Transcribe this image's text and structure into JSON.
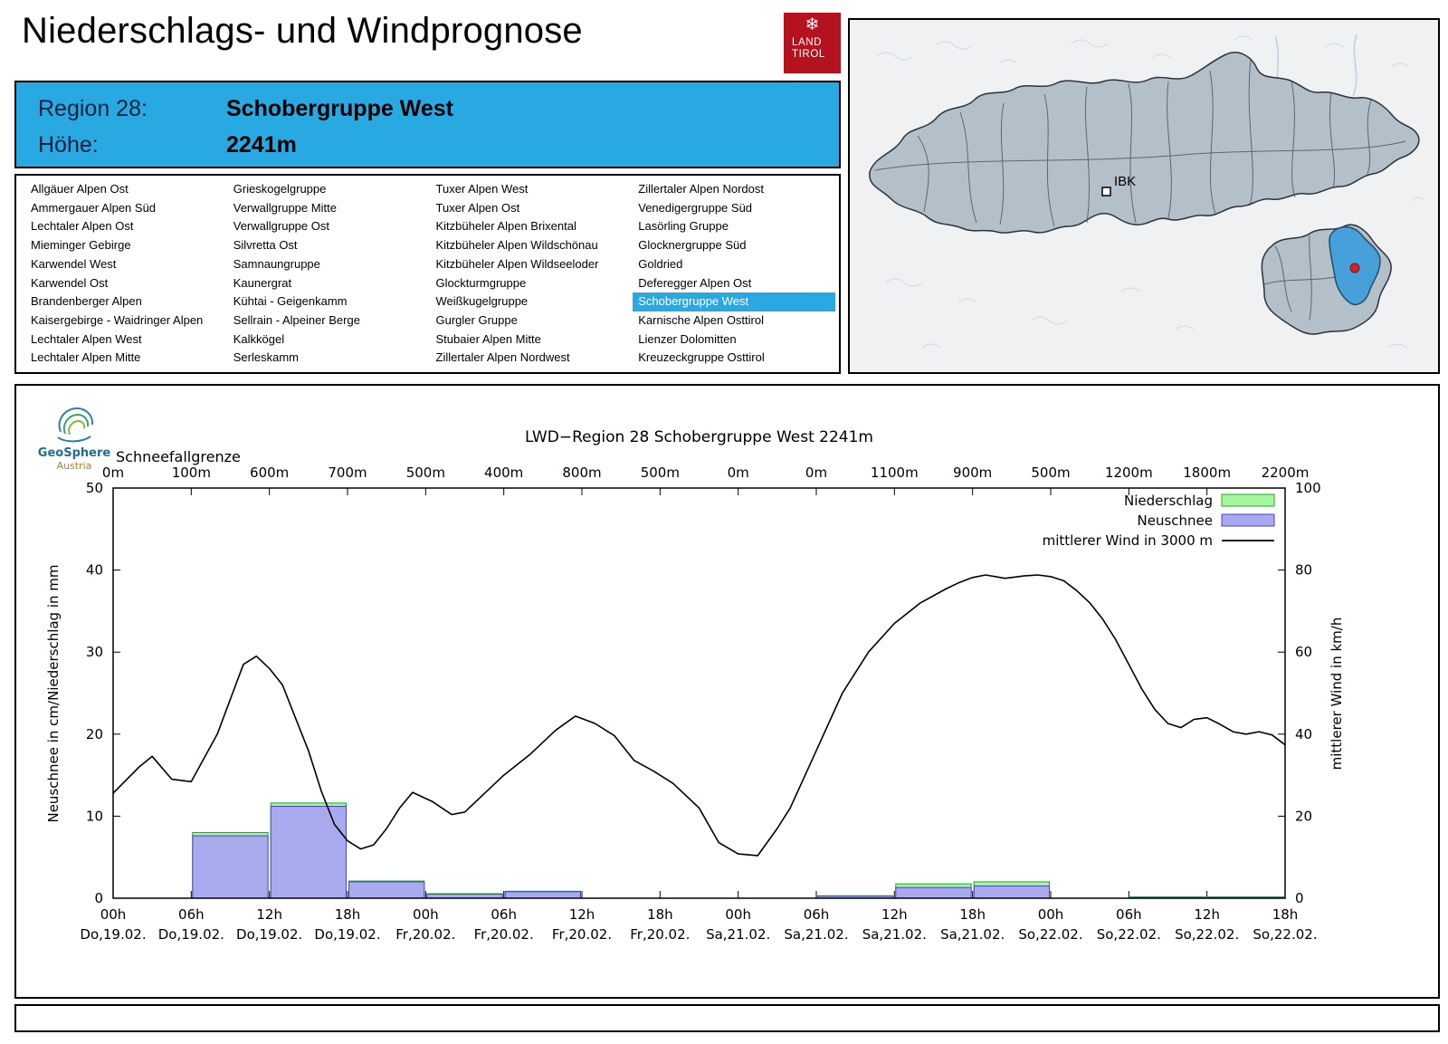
{
  "theme": {
    "accent": "#29a9e1",
    "logo_red": "#b5121f"
  },
  "header": {
    "title": "Niederschlags- und Windprognose"
  },
  "logo": {
    "snowflake": "❄",
    "line1": "LAND",
    "line2": "TIROL"
  },
  "region_info": {
    "region_label": "Region 28:",
    "region_value": "Schobergruppe West",
    "altitude_label": "Höhe:",
    "altitude_value": "2241m"
  },
  "map": {
    "city_label": "IBK"
  },
  "region_list": {
    "selected": "Schobergruppe West",
    "columns": [
      [
        "Allgäuer Alpen Ost",
        "Ammergauer Alpen Süd",
        "Lechtaler Alpen Ost",
        "Mieminger Gebirge",
        "Karwendel West",
        "Karwendel Ost",
        "Brandenberger Alpen",
        "Kaisergebirge - Waidringer Alpen",
        "Lechtaler Alpen West",
        "Lechtaler Alpen Mitte"
      ],
      [
        "Grieskogelgruppe",
        "Verwallgruppe Mitte",
        "Verwallgruppe Ost",
        "Silvretta Ost",
        "Samnaungruppe",
        "Kaunergrat",
        "Kühtai - Geigenkamm",
        "Sellrain - Alpeiner Berge",
        "Kalkkögel",
        "Serleskamm"
      ],
      [
        "Tuxer Alpen West",
        "Tuxer Alpen Ost",
        "Kitzbüheler Alpen Brixental",
        "Kitzbüheler Alpen Wildschönau",
        "Kitzbüheler Alpen Wildseeloder",
        "Glockturmgruppe",
        "Weißkugelgruppe",
        "Gurgler Gruppe",
        "Stubaier Alpen Mitte",
        "Zillertaler Alpen Nordwest"
      ],
      [
        "Zillertaler Alpen Nordost",
        "Venedigergruppe Süd",
        "Lasörling Gruppe",
        "Glocknergruppe Süd",
        "Goldried",
        "Deferegger Alpen Ost",
        "Schobergruppe West",
        "Karnische Alpen Osttirol",
        "Lienzer Dolomitten",
        "Kreuzeckgruppe Osttirol"
      ]
    ]
  },
  "chart_data": {
    "type": "bar+line",
    "title": "LWD−Region 28 Schobergruppe West 2241m",
    "watermark": {
      "line1": "GeoSphere",
      "line2": "Austria"
    },
    "snowline_label": "Schneefallgrenze",
    "snowline_values": [
      "0m",
      "100m",
      "600m",
      "700m",
      "500m",
      "400m",
      "800m",
      "500m",
      "0m",
      "0m",
      "1100m",
      "900m",
      "500m",
      "1200m",
      "1800m",
      "2200m"
    ],
    "ylabel_left": "Neuschnee in cm/Niederschlag in mm",
    "ylabel_right": "mittlerer Wind in km/h",
    "ylim_left": [
      0,
      50
    ],
    "ylim_right": [
      0,
      100
    ],
    "yticks_left": [
      0,
      10,
      20,
      30,
      40,
      50
    ],
    "yticks_right": [
      0,
      20,
      40,
      60,
      80,
      100
    ],
    "x_hours_span": 90,
    "x_ticks": [
      {
        "hour": "00h",
        "day": "Do,19.02."
      },
      {
        "hour": "06h",
        "day": "Do,19.02."
      },
      {
        "hour": "12h",
        "day": "Do,19.02."
      },
      {
        "hour": "18h",
        "day": "Do,19.02."
      },
      {
        "hour": "00h",
        "day": "Fr,20.02."
      },
      {
        "hour": "06h",
        "day": "Fr,20.02."
      },
      {
        "hour": "12h",
        "day": "Fr,20.02."
      },
      {
        "hour": "18h",
        "day": "Fr,20.02."
      },
      {
        "hour": "00h",
        "day": "Sa,21.02."
      },
      {
        "hour": "06h",
        "day": "Sa,21.02."
      },
      {
        "hour": "12h",
        "day": "Sa,21.02."
      },
      {
        "hour": "18h",
        "day": "Sa,21.02."
      },
      {
        "hour": "00h",
        "day": "So,22.02."
      },
      {
        "hour": "06h",
        "day": "So,22.02."
      },
      {
        "hour": "12h",
        "day": "So,22.02."
      },
      {
        "hour": "18h",
        "day": "So,22.02."
      }
    ],
    "legend": [
      {
        "label": "Niederschlag",
        "type": "bar",
        "fill": "#a8f4a0",
        "border": "#1caa1c"
      },
      {
        "label": "Neuschnee",
        "type": "bar",
        "fill": "#a9a9ee",
        "border": "#4444cc"
      },
      {
        "label": "mittlerer Wind in 3000 m",
        "type": "line",
        "color": "#000000"
      }
    ],
    "bars": {
      "width_hours": 6,
      "series": [
        {
          "start": 6,
          "niederschlag": 8.0,
          "neuschnee": 7.6
        },
        {
          "start": 12,
          "niederschlag": 11.6,
          "neuschnee": 11.2
        },
        {
          "start": 18,
          "niederschlag": 2.1,
          "neuschnee": 2.0
        },
        {
          "start": 24,
          "niederschlag": 0.55,
          "neuschnee": 0.5
        },
        {
          "start": 30,
          "niederschlag": 0.85,
          "neuschnee": 0.8
        },
        {
          "start": 54,
          "niederschlag": 0.3,
          "neuschnee": 0.25
        },
        {
          "start": 60,
          "niederschlag": 1.75,
          "neuschnee": 1.3
        },
        {
          "start": 66,
          "niederschlag": 2.0,
          "neuschnee": 1.5
        },
        {
          "start": 78,
          "niederschlag": 0.15,
          "neuschnee": 0.1
        },
        {
          "start": 84,
          "niederschlag": 0.15,
          "neuschnee": 0.1
        }
      ]
    },
    "wind_kmh": [
      [
        0,
        25.6
      ],
      [
        2,
        32
      ],
      [
        3,
        34.6
      ],
      [
        4.5,
        29
      ],
      [
        6,
        28.4
      ],
      [
        8,
        40
      ],
      [
        10,
        57
      ],
      [
        11,
        59
      ],
      [
        12,
        56
      ],
      [
        13,
        52
      ],
      [
        14,
        44
      ],
      [
        15,
        36
      ],
      [
        16,
        26
      ],
      [
        17,
        18
      ],
      [
        18,
        14
      ],
      [
        19,
        12
      ],
      [
        20,
        13
      ],
      [
        21,
        17
      ],
      [
        22,
        22
      ],
      [
        23,
        25.8
      ],
      [
        24.5,
        23.6
      ],
      [
        26,
        20.4
      ],
      [
        27,
        21
      ],
      [
        28,
        24
      ],
      [
        30,
        30
      ],
      [
        32,
        35
      ],
      [
        34,
        41
      ],
      [
        35.5,
        44.4
      ],
      [
        37,
        42.6
      ],
      [
        38.5,
        39.6
      ],
      [
        40,
        33.6
      ],
      [
        41.5,
        31
      ],
      [
        43,
        28
      ],
      [
        45,
        22
      ],
      [
        46.5,
        13.6
      ],
      [
        48,
        10.8
      ],
      [
        49.5,
        10.4
      ],
      [
        51,
        17
      ],
      [
        52,
        22
      ],
      [
        54,
        36
      ],
      [
        56,
        50
      ],
      [
        58,
        60
      ],
      [
        60,
        67
      ],
      [
        62,
        72
      ],
      [
        64,
        75.5
      ],
      [
        65,
        77
      ],
      [
        66,
        78.2
      ],
      [
        67,
        78.8
      ],
      [
        68.5,
        78
      ],
      [
        70,
        78.6
      ],
      [
        71,
        78.8
      ],
      [
        72,
        78.4
      ],
      [
        73,
        77.4
      ],
      [
        74,
        75
      ],
      [
        75,
        72
      ],
      [
        76,
        68
      ],
      [
        77,
        63
      ],
      [
        78,
        57
      ],
      [
        79,
        51
      ],
      [
        80,
        46
      ],
      [
        81,
        42.6
      ],
      [
        82,
        41.6
      ],
      [
        83,
        43.6
      ],
      [
        84,
        44
      ],
      [
        85,
        42.4
      ],
      [
        86,
        40.6
      ],
      [
        87,
        40
      ],
      [
        88,
        40.6
      ],
      [
        89,
        39.8
      ],
      [
        90,
        37.4
      ]
    ]
  }
}
